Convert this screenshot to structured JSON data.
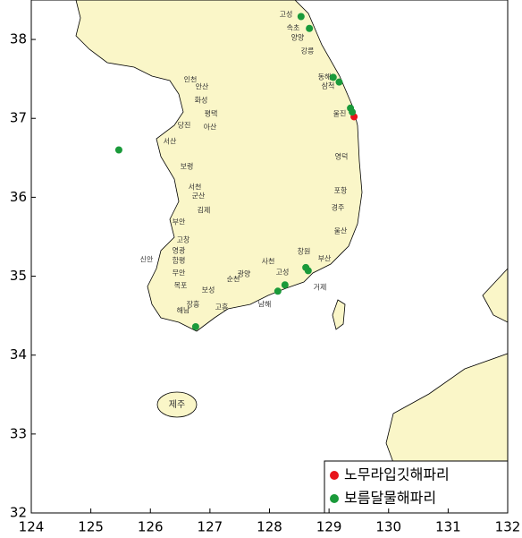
{
  "chart_data": {
    "type": "scatter",
    "xlim": [
      124,
      132
    ],
    "ylim": [
      32,
      38.5
    ],
    "xticks": [
      124,
      125,
      126,
      127,
      128,
      129,
      130,
      131,
      132
    ],
    "yticks": [
      32,
      33,
      34,
      35,
      36,
      37,
      38
    ],
    "land_color": "#faf6c8",
    "legend": "bottom-right",
    "series": [
      {
        "name": "노무라입깃해파리",
        "color": "#e8141b",
        "x": [
          129.42
        ],
        "values": [
          37.02
        ]
      },
      {
        "name": "보름달물해파리",
        "color": "#1a9a3a",
        "x": [
          128.53,
          128.67,
          129.07,
          129.17,
          129.36,
          129.39,
          125.47,
          128.61,
          128.65,
          128.26,
          128.14,
          126.76
        ],
        "values": [
          38.29,
          38.14,
          37.52,
          37.46,
          37.13,
          37.08,
          36.6,
          35.11,
          35.07,
          34.89,
          34.81,
          34.36
        ]
      }
    ],
    "place_labels": [
      "고성",
      "속초",
      "양양",
      "강릉",
      "동해",
      "삼척",
      "울진",
      "영덕",
      "포항",
      "경주",
      "울산",
      "부산",
      "창원",
      "고성",
      "거제",
      "사천",
      "남해",
      "광양",
      "순천",
      "보성",
      "고흥",
      "장흥",
      "해남",
      "목포",
      "무안",
      "함평",
      "영광",
      "신안",
      "고창",
      "부안",
      "김제",
      "군산",
      "서천",
      "보령",
      "서산",
      "당진",
      "아산",
      "평택",
      "화성",
      "안산",
      "인천",
      "제주"
    ]
  }
}
